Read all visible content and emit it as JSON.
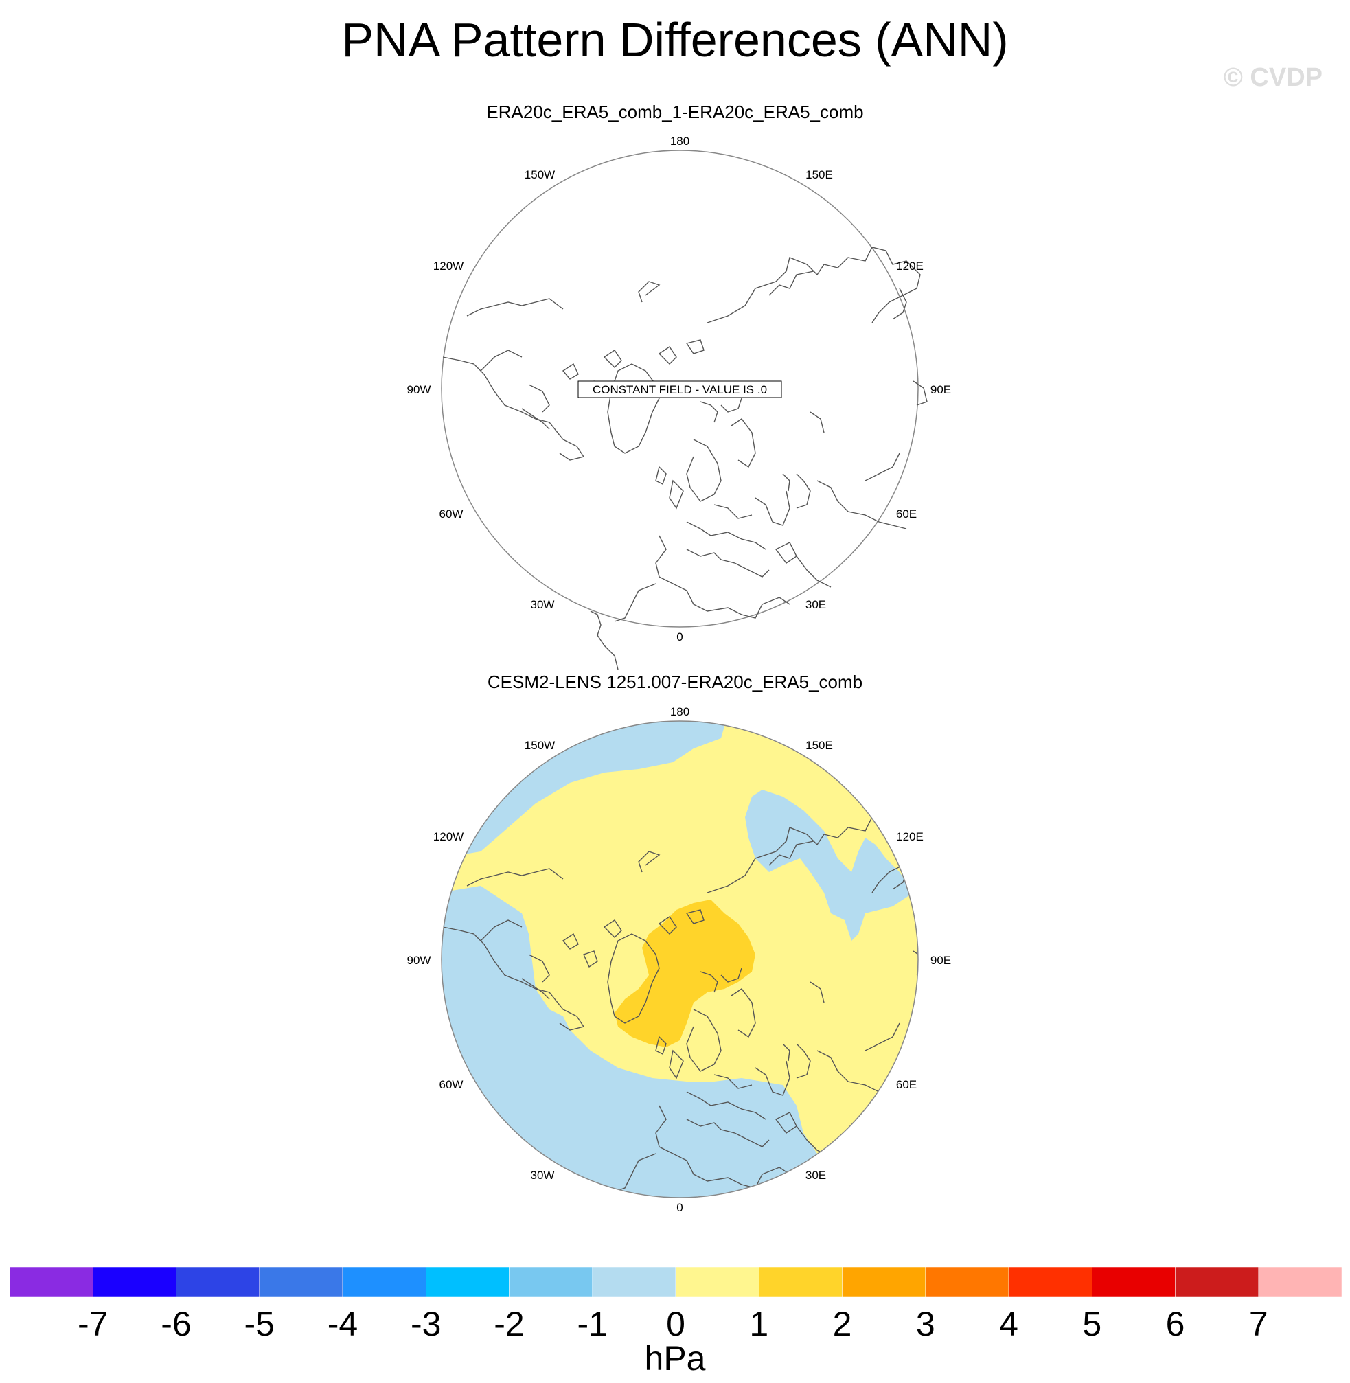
{
  "title": "PNA Pattern Differences (ANN)",
  "watermark": "© CVDP",
  "panels": [
    {
      "title": "ERA20c_ERA5_comb_1-ERA20c_ERA5_comb",
      "note": "CONSTANT FIELD - VALUE IS .0"
    },
    {
      "title": "CESM2-LENS 1251.007-ERA20c_ERA5_comb"
    }
  ],
  "longitude_labels": {
    "top": "180",
    "upper_left": "150W",
    "upper_right": "150E",
    "left_high": "120W",
    "right_high": "120E",
    "left": "90W",
    "right": "90E",
    "left_low": "60W",
    "right_low": "60E",
    "lower_left": "30W",
    "lower_right": "30E",
    "bottom": "0"
  },
  "colorbar": {
    "labels": [
      "-7",
      "-6",
      "-5",
      "-4",
      "-3",
      "-2",
      "-1",
      "0",
      "1",
      "2",
      "3",
      "4",
      "5",
      "6",
      "7"
    ],
    "colors": [
      "#8a2be2",
      "#1a00ff",
      "#2d44e6",
      "#3a78e8",
      "#1e90ff",
      "#00bfff",
      "#78c8f0",
      "#b4dcf0",
      "#fff68f",
      "#ffd42a",
      "#ffa500",
      "#ff7700",
      "#ff3000",
      "#e80000",
      "#cc1c1c",
      "#ffb4b4"
    ],
    "units": "hPa"
  },
  "map_fill_colors": {
    "neg_0_to_1": "#b4dcf0",
    "pos_0_to_1": "#fff68f",
    "pos_1_to_2": "#ffd42a"
  }
}
